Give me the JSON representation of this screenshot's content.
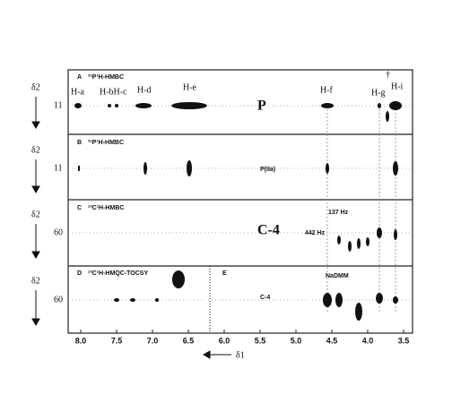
{
  "axis": {
    "y_label": "δ2",
    "x_label": "δ1",
    "x_ticks": [
      "8.0",
      "7.5",
      "7.0",
      "6.5",
      "6.0",
      "5.5",
      "5.0",
      "4.5",
      "4.0",
      "3.5"
    ]
  },
  "panels": [
    {
      "letter": "A",
      "title": "³¹P¹H-HMBC",
      "y_tick": "11",
      "labels": [
        "H-a",
        "H-bH-c",
        "H-d",
        "H-e",
        "P",
        "H-f",
        "H-g",
        "H-i",
        "†"
      ]
    },
    {
      "letter": "B",
      "title": "³¹P¹H-HMBC",
      "y_tick": "11",
      "labels": [
        "P(IIa)"
      ]
    },
    {
      "letter": "C",
      "title": "¹³C¹H-HMBC",
      "y_tick": "60",
      "labels": [
        "C-4",
        "137 Hz",
        "442 Hz"
      ]
    },
    {
      "letter": "D",
      "title": "¹³C¹H-HMQC-TOCSY",
      "y_tick": "60",
      "labels": []
    },
    {
      "letter": "E",
      "title": "",
      "y_tick": "",
      "labels": [
        "C-4",
        "NaDMM"
      ]
    }
  ]
}
